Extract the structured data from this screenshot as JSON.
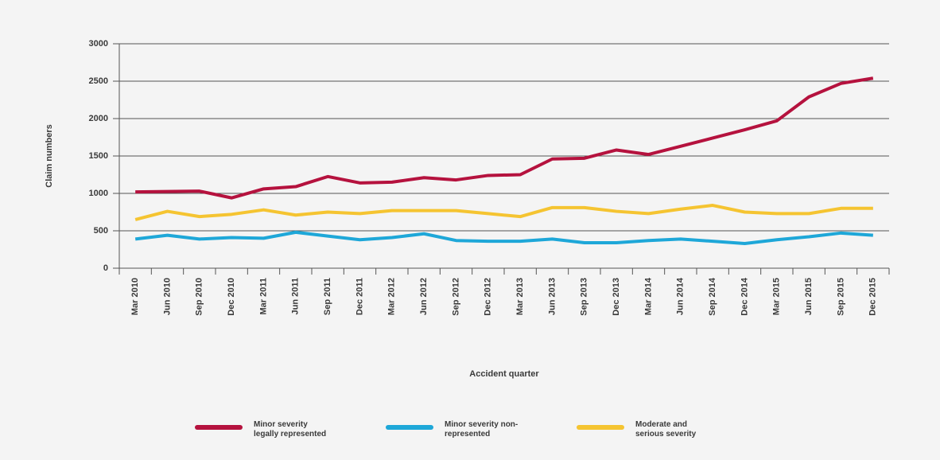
{
  "chart_data": {
    "type": "line",
    "ylabel": "Claim numbers",
    "xlabel": "Accident quarter",
    "categories": [
      "Mar 2010",
      "Jun 2010",
      "Sep 2010",
      "Dec 2010",
      "Mar 2011",
      "Jun 2011",
      "Sep 2011",
      "Dec 2011",
      "Mar 2012",
      "Jun 2012",
      "Sep 2012",
      "Dec 2012",
      "Mar 2013",
      "Jun 2013",
      "Sep 2013",
      "Dec 2013",
      "Mar 2014",
      "Jun 2014",
      "Sep 2014",
      "Dec 2014",
      "Mar 2015",
      "Jun 2015",
      "Sep 2015",
      "Dec 2015"
    ],
    "series": [
      {
        "name": "Minor severity legally represented",
        "color": "#b5123e",
        "values": [
          1020,
          1025,
          1030,
          940,
          1060,
          1090,
          1225,
          1140,
          1150,
          1210,
          1180,
          1240,
          1250,
          1460,
          1470,
          1580,
          1520,
          1630,
          1740,
          1850,
          1970,
          2290,
          2470,
          2540
        ]
      },
      {
        "name": "Minor severity non-represented",
        "color": "#1ea7d8",
        "values": [
          390,
          440,
          390,
          410,
          400,
          480,
          430,
          380,
          410,
          460,
          370,
          360,
          360,
          390,
          340,
          340,
          370,
          390,
          360,
          330,
          380,
          420,
          470,
          440
        ]
      },
      {
        "name": "Moderate and serious severity",
        "color": "#f5c431",
        "values": [
          650,
          760,
          690,
          720,
          780,
          710,
          750,
          730,
          770,
          770,
          770,
          730,
          690,
          810,
          810,
          760,
          730,
          790,
          840,
          750,
          730,
          730,
          800,
          800
        ]
      }
    ],
    "ylim": [
      0,
      3000
    ],
    "yticks": [
      0,
      500,
      1000,
      1500,
      2000,
      2500,
      3000
    ],
    "grid": true,
    "legend": "bottom"
  }
}
